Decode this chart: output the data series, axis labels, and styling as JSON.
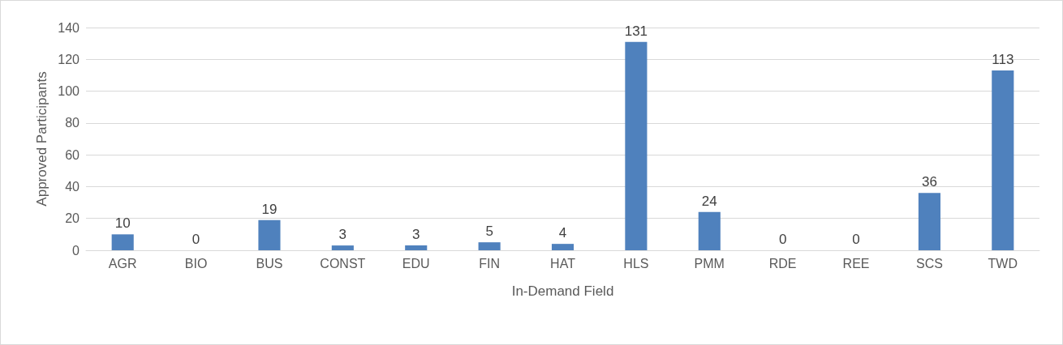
{
  "chart_data": {
    "type": "bar",
    "xlabel": "In-Demand Field",
    "ylabel": "Approved Participants",
    "categories": [
      "AGR",
      "BIO",
      "BUS",
      "CONST",
      "EDU",
      "FIN",
      "HAT",
      "HLS",
      "PMM",
      "RDE",
      "REE",
      "SCS",
      "TWD"
    ],
    "values": [
      10,
      0,
      19,
      3,
      3,
      5,
      4,
      131,
      24,
      0,
      0,
      36,
      113
    ],
    "color": "#4f81bd",
    "ylim": [
      0,
      140
    ],
    "yticks": [
      0,
      20,
      40,
      60,
      80,
      100,
      120,
      140
    ],
    "grid": "y",
    "data_labels": true
  }
}
